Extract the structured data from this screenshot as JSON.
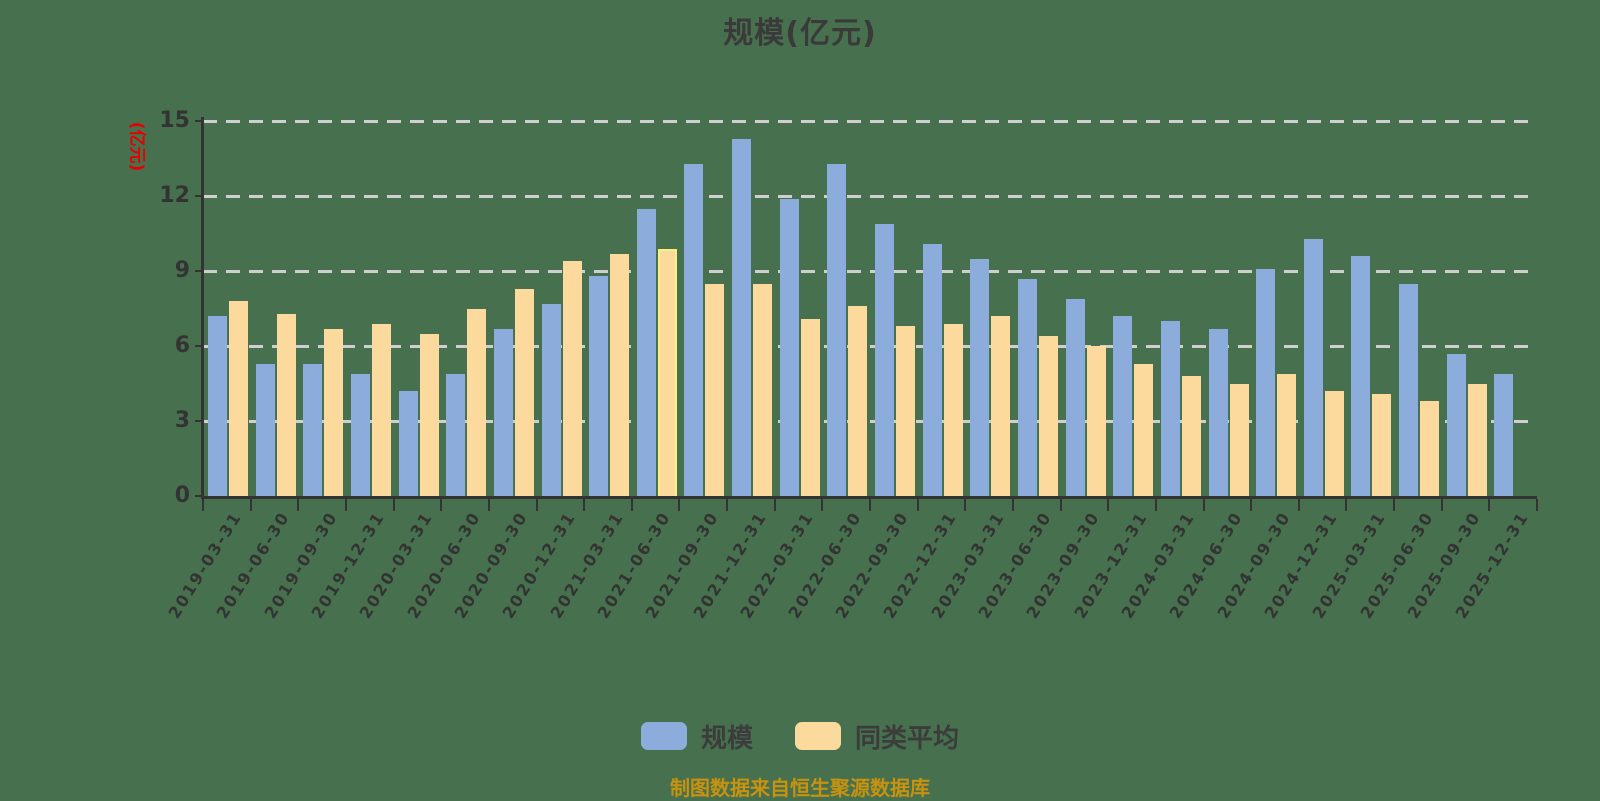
{
  "title": "规模(亿元)",
  "caption": "制图数据来自恒生聚源数据库",
  "chart_data": {
    "type": "bar",
    "title": "规模(亿元)",
    "ylabel": "(亿元)",
    "ylabel_color": "#E60000",
    "ylim": [
      0,
      15
    ],
    "yticks": [
      0,
      3,
      6,
      9,
      12,
      15
    ],
    "grid": "horizontal dashed",
    "legend_position": "bottom",
    "background_color": "#47714E",
    "categories": [
      "2019-03-31",
      "2019-06-30",
      "2019-09-30",
      "2019-12-31",
      "2020-03-31",
      "2020-06-30",
      "2020-09-30",
      "2020-12-31",
      "2021-03-31",
      "2021-06-30",
      "2021-09-30",
      "2021-12-31",
      "2022-03-31",
      "2022-06-30",
      "2022-09-30",
      "2022-12-31",
      "2023-03-31",
      "2023-06-30",
      "2023-09-30",
      "2023-12-31",
      "2024-03-31",
      "2024-06-30",
      "2024-09-30",
      "2024-12-31",
      "2025-03-31",
      "2025-06-30",
      "2025-09-30",
      "2025-12-31"
    ],
    "series": [
      {
        "name": "规模",
        "color": "#8CADDB",
        "values": [
          7.2,
          5.3,
          5.3,
          4.9,
          4.2,
          4.9,
          6.7,
          7.7,
          8.8,
          11.5,
          13.3,
          14.3,
          11.9,
          13.3,
          10.9,
          10.1,
          9.5,
          8.7,
          7.9,
          7.2,
          7.0,
          6.7,
          9.1,
          10.3,
          9.6,
          8.5,
          5.7,
          4.9
        ]
      },
      {
        "name": "同类平均",
        "color": "#FCDA9D",
        "highlight_index": 9,
        "highlight_border_color": "#FBF07E",
        "values": [
          7.8,
          7.3,
          6.7,
          6.9,
          6.5,
          7.5,
          8.3,
          9.4,
          9.7,
          9.9,
          8.5,
          8.5,
          7.1,
          7.6,
          6.8,
          6.9,
          7.2,
          6.4,
          6.0,
          5.3,
          4.8,
          4.5,
          4.9,
          4.2,
          4.1,
          3.8,
          4.5,
          null
        ]
      }
    ]
  }
}
